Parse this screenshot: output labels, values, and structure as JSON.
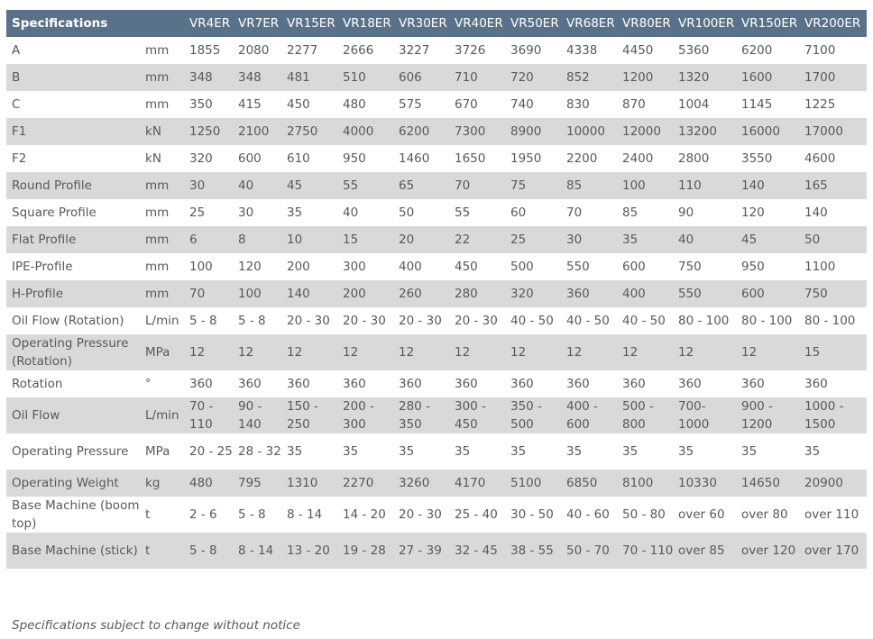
{
  "header": {
    "specifications": "Specifications",
    "unit": "",
    "models": [
      "VR4ER",
      "VR7ER",
      "VR15ER",
      "VR18ER",
      "VR30ER",
      "VR40ER",
      "VR50ER",
      "VR68ER",
      "VR80ER",
      "VR100ER",
      "VR150ER",
      "VR200ER"
    ]
  },
  "rows": [
    {
      "label": "A",
      "unit": "mm",
      "values": [
        "1855",
        "2080",
        "2277",
        "2666",
        "3227",
        "3726",
        "3690",
        "4338",
        "4450",
        "5360",
        "6200",
        "7100"
      ]
    },
    {
      "label": "B",
      "unit": "mm",
      "values": [
        "348",
        "348",
        "481",
        "510",
        "606",
        "710",
        "720",
        "852",
        "1200",
        "1320",
        "1600",
        "1700"
      ]
    },
    {
      "label": "C",
      "unit": "mm",
      "values": [
        "350",
        "415",
        "450",
        "480",
        "575",
        "670",
        "740",
        "830",
        "870",
        "1004",
        "1145",
        "1225"
      ]
    },
    {
      "label": "F1",
      "unit": "kN",
      "values": [
        "1250",
        "2100",
        "2750",
        "4000",
        "6200",
        "7300",
        "8900",
        "10000",
        "12000",
        "13200",
        "16000",
        "17000"
      ]
    },
    {
      "label": "F2",
      "unit": "kN",
      "values": [
        "320",
        "600",
        "610",
        "950",
        "1460",
        "1650",
        "1950",
        "2200",
        "2400",
        "2800",
        "3550",
        "4600"
      ]
    },
    {
      "label": "Round Profile",
      "unit": "mm",
      "values": [
        "30",
        "40",
        "45",
        "55",
        "65",
        "70",
        "75",
        "85",
        "100",
        "110",
        "140",
        "165"
      ]
    },
    {
      "label": "Square Profile",
      "unit": "mm",
      "values": [
        "25",
        "30",
        "35",
        "40",
        "50",
        "55",
        "60",
        "70",
        "85",
        "90",
        "120",
        "140"
      ]
    },
    {
      "label": "Flat Profile",
      "unit": "mm",
      "values": [
        "6",
        "8",
        "10",
        "15",
        "20",
        "22",
        "25",
        "30",
        "35",
        "40",
        "45",
        "50"
      ]
    },
    {
      "label": "IPE-Profile",
      "unit": "mm",
      "values": [
        "100",
        "120",
        "200",
        "300",
        "400",
        "450",
        "500",
        "550",
        "600",
        "750",
        "950",
        "1100"
      ]
    },
    {
      "label": "H-Profile",
      "unit": "mm",
      "values": [
        "70",
        "100",
        "140",
        "200",
        "260",
        "280",
        "320",
        "360",
        "400",
        "550",
        "600",
        "750"
      ]
    },
    {
      "label": "Oil Flow (Rotation)",
      "unit": "L/min",
      "values": [
        "5 - 8",
        "5 - 8",
        "20 - 30",
        "20 - 30",
        "20 - 30",
        "20 - 30",
        "40 - 50",
        "40 - 50",
        "40 - 50",
        "80 - 100",
        "80 - 100",
        "80 - 100"
      ]
    },
    {
      "label": "Operating Pressure (Rotation)",
      "unit": "MPa",
      "values": [
        "12",
        "12",
        "12",
        "12",
        "12",
        "12",
        "12",
        "12",
        "12",
        "12",
        "12",
        "15"
      ]
    },
    {
      "label": "Rotation",
      "unit": "°",
      "values": [
        "360",
        "360",
        "360",
        "360",
        "360",
        "360",
        "360",
        "360",
        "360",
        "360",
        "360",
        "360"
      ]
    },
    {
      "label": "Oil Flow",
      "unit": "L/min",
      "values": [
        "70 - 110",
        "90 - 140",
        "150 - 250",
        "200 - 300",
        "280 - 350",
        "300 - 450",
        "350 - 500",
        "400 - 600",
        "500 - 800",
        "700- 1000",
        "900 - 1200",
        "1000 - 1500"
      ]
    },
    {
      "label": "Operating Pressure",
      "unit": "MPa",
      "values": [
        "20 - 25",
        "28 - 32",
        "35",
        "35",
        "35",
        "35",
        "35",
        "35",
        "35",
        "35",
        "35",
        "35"
      ]
    },
    {
      "label": "Operating Weight",
      "unit": "kg",
      "values": [
        "480",
        "795",
        "1310",
        "2270",
        "3260",
        "4170",
        "5100",
        "6850",
        "8100",
        "10330",
        "14650",
        "20900"
      ]
    },
    {
      "label": "Base Machine (boom top)",
      "unit": "t",
      "values": [
        "2 - 6",
        "5 - 8",
        "8 - 14",
        "14 - 20",
        "20 - 30",
        "25 - 40",
        "30 - 50",
        "40 - 60",
        "50 - 80",
        "over 60",
        "over 80",
        "over 110"
      ]
    },
    {
      "label": "Base Machine (stick)",
      "unit": "t",
      "values": [
        "5 - 8",
        "8 - 14",
        "13 - 20",
        "19 - 28",
        "27 - 39",
        "32 - 45",
        "38 - 55",
        "50 - 70",
        "70 - 110",
        "over 85",
        "over 120",
        "over 170"
      ]
    }
  ],
  "note": "Specifications subject to change without notice"
}
